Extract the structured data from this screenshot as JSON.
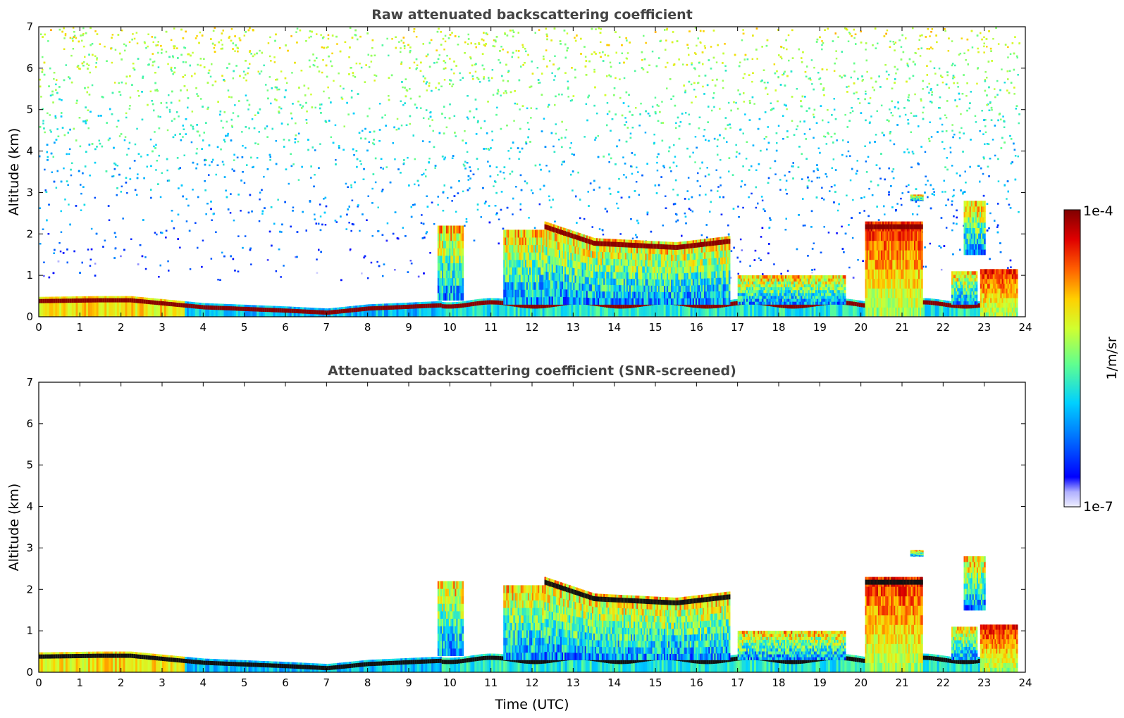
{
  "chart_data": [
    {
      "type": "heatmap",
      "title": "Raw attenuated backscattering coefficient",
      "xlabel": "",
      "ylabel": "Altitude (km)",
      "xlim": [
        0,
        24
      ],
      "ylim": [
        0,
        7
      ],
      "x_ticks": [
        "0",
        "1",
        "2",
        "3",
        "4",
        "5",
        "6",
        "7",
        "8",
        "9",
        "10",
        "11",
        "12",
        "13",
        "14",
        "15",
        "16",
        "17",
        "18",
        "19",
        "20",
        "21",
        "22",
        "23",
        "24"
      ],
      "y_ticks": [
        "0",
        "1",
        "2",
        "3",
        "4",
        "5",
        "6",
        "7"
      ],
      "noise_above": true,
      "layers": [
        {
          "t0": 0.0,
          "t1": 9.8,
          "boundary_layer_top_km": [
            [
              0,
              0.48
            ],
            [
              1.5,
              0.5
            ],
            [
              2.2,
              0.5
            ],
            [
              4,
              0.33
            ],
            [
              6,
              0.25
            ],
            [
              7,
              0.2
            ],
            [
              8,
              0.3
            ],
            [
              9.8,
              0.38
            ]
          ]
        },
        {
          "t0": 9.7,
          "t1": 10.3,
          "base_km": 0.4,
          "top_km": 2.2
        },
        {
          "t0": 11.3,
          "t1": 12.3,
          "base_km": 0.3,
          "top_km": 2.1
        },
        {
          "t0": 12.3,
          "t1": 16.8,
          "base_km": 0.3,
          "top_km": [
            [
              12.3,
              2.3
            ],
            [
              13.5,
              1.9
            ],
            [
              15.5,
              1.8
            ],
            [
              16.8,
              1.95
            ]
          ]
        },
        {
          "t0": 17.0,
          "t1": 19.6,
          "base_km": 0.3,
          "top_km": 1.0
        },
        {
          "t0": 20.1,
          "t1": 21.5,
          "base_km": 0.0,
          "top_km": 2.3
        },
        {
          "t0": 21.2,
          "t1": 21.5,
          "base_km": 2.8,
          "top_km": 2.95
        },
        {
          "t0": 22.2,
          "t1": 22.8,
          "base_km": 0.3,
          "top_km": 1.1
        },
        {
          "t0": 22.5,
          "t1": 23.0,
          "base_km": 1.5,
          "top_km": 2.8
        },
        {
          "t0": 22.9,
          "t1": 23.8,
          "base_km": 0.0,
          "top_km": 1.15
        }
      ]
    },
    {
      "type": "heatmap",
      "title": "Attenuated backscattering coefficient (SNR-screened)",
      "xlabel": "Time (UTC)",
      "ylabel": "Altitude (km)",
      "xlim": [
        0,
        24
      ],
      "ylim": [
        0,
        7
      ],
      "x_ticks": [
        "0",
        "1",
        "2",
        "3",
        "4",
        "5",
        "6",
        "7",
        "8",
        "9",
        "10",
        "11",
        "12",
        "13",
        "14",
        "15",
        "16",
        "17",
        "18",
        "19",
        "20",
        "21",
        "22",
        "23",
        "24"
      ],
      "y_ticks": [
        "0",
        "1",
        "2",
        "3",
        "4",
        "5",
        "6",
        "7"
      ],
      "noise_above": false
    }
  ],
  "colorbar": {
    "max_label": "1e-4",
    "min_label": "1e-7",
    "label": "1/m/sr",
    "scale": "log",
    "range": [
      1e-07,
      0.0001
    ],
    "colormap": [
      "#eeeeff",
      "#b0b0ff",
      "#0000ff",
      "#0080ff",
      "#00d0ff",
      "#60ff90",
      "#d0ff30",
      "#ffd000",
      "#ff6000",
      "#e00000",
      "#800000"
    ]
  }
}
